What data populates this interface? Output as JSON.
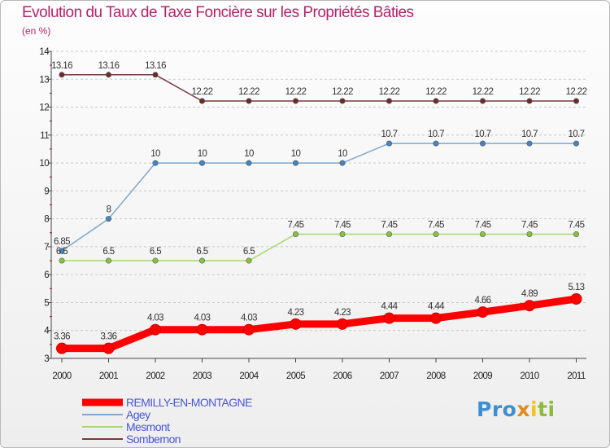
{
  "title": "Evolution du Taux de Taxe Foncière sur les Propriétés Bâties",
  "unit": "(en %)",
  "logo": [
    "Pro",
    "x",
    "i",
    "ti"
  ],
  "colors": {
    "title": "#b3246a",
    "axis": "#444444",
    "grid": "#c8c8c8",
    "tick_red": "#cc0000"
  },
  "chart_data": {
    "type": "line",
    "title": "Evolution du Taux de Taxe Foncière sur les Propriétés Bâties",
    "ylabel": "(en %)",
    "xlabel": "",
    "x": [
      "2000",
      "2001",
      "2002",
      "2003",
      "2004",
      "2005",
      "2006",
      "2007",
      "2008",
      "2009",
      "2010",
      "2011"
    ],
    "ylim": [
      3,
      14
    ],
    "yticks": [
      "3",
      "4",
      "5",
      "6",
      "7",
      "8",
      "9",
      "10",
      "11",
      "12",
      "13",
      "14"
    ],
    "grid": "horizontal dashed",
    "legend": "bottom-left",
    "series": [
      {
        "name": "REMILLY-EN-MONTAGNE",
        "color": "#ff0000",
        "marker_color": "#ff0000",
        "highlight": true,
        "values": [
          3.36,
          3.36,
          4.03,
          4.03,
          4.03,
          4.23,
          4.23,
          4.44,
          4.44,
          4.66,
          4.89,
          5.13
        ],
        "labels": [
          "3.36",
          "3.36",
          "4.03",
          "4.03",
          "4.03",
          "4.23",
          "4.23",
          "4.44",
          "4.44",
          "4.66",
          "4.89",
          "5.13"
        ]
      },
      {
        "name": "Agey",
        "color": "#7fa8cc",
        "marker_color": "#3e86c7",
        "highlight": false,
        "values": [
          6.85,
          8,
          10,
          10,
          10,
          10,
          10,
          10.7,
          10.7,
          10.7,
          10.7,
          10.7
        ],
        "labels": [
          "6.85",
          "8",
          "10",
          "10",
          "10",
          "10",
          "10",
          "10.7",
          "10.7",
          "10.7",
          "10.7",
          "10.7"
        ]
      },
      {
        "name": "Mesmont",
        "color": "#a6d86f",
        "marker_color": "#86c440",
        "highlight": false,
        "values": [
          6.5,
          6.5,
          6.5,
          6.5,
          6.5,
          7.45,
          7.45,
          7.45,
          7.45,
          7.45,
          7.45,
          7.45
        ],
        "labels": [
          "6.5",
          "6.5",
          "6.5",
          "6.5",
          "6.5",
          "7.45",
          "7.45",
          "7.45",
          "7.45",
          "7.45",
          "7.45",
          "7.45"
        ]
      },
      {
        "name": "Sombernon",
        "color": "#7b3a3e",
        "marker_color": "#6b2a2e",
        "highlight": false,
        "values": [
          13.16,
          13.16,
          13.16,
          12.22,
          12.22,
          12.22,
          12.22,
          12.22,
          12.22,
          12.22,
          12.22,
          12.22
        ],
        "labels": [
          "13.16",
          "13.16",
          "13.16",
          "12.22",
          "12.22",
          "12.22",
          "12.22",
          "12.22",
          "12.22",
          "12.22",
          "12.22",
          "12.22"
        ]
      }
    ]
  }
}
